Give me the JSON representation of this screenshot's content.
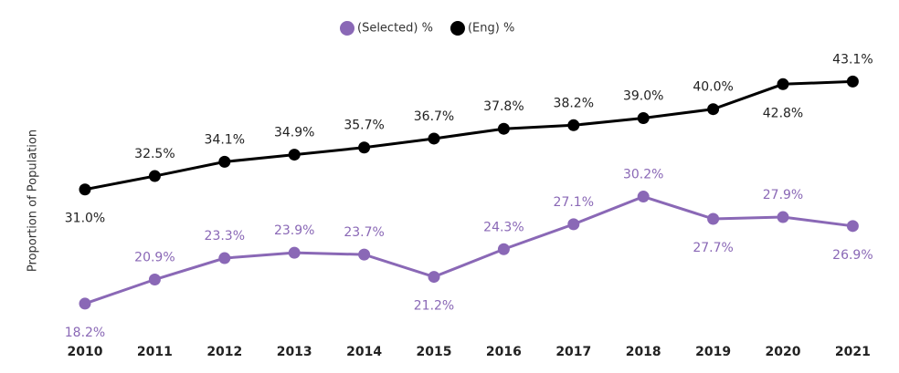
{
  "chart_data": {
    "type": "line",
    "y_label": "Proportion of Population",
    "categories": [
      "2010",
      "2011",
      "2012",
      "2013",
      "2014",
      "2015",
      "2016",
      "2017",
      "2018",
      "2019",
      "2020",
      "2021"
    ],
    "ylim": [
      14,
      46
    ],
    "legend": "top",
    "series": [
      {
        "name": "(Selected) %",
        "color": "#8a68b6",
        "values": [
          18.2,
          20.9,
          23.3,
          23.9,
          23.7,
          21.2,
          24.3,
          27.1,
          30.2,
          27.7,
          27.9,
          26.9
        ],
        "value_labels": [
          "18.2%",
          "20.9%",
          "23.3%",
          "23.9%",
          "23.7%",
          "21.2%",
          "24.3%",
          "27.1%",
          "30.2%",
          "27.7%",
          "27.9%",
          "26.9%"
        ]
      },
      {
        "name": "(Eng) %",
        "color": "#000000",
        "values": [
          31.0,
          32.5,
          34.1,
          34.9,
          35.7,
          36.7,
          37.8,
          38.2,
          39.0,
          40.0,
          42.8,
          43.1
        ],
        "value_labels": [
          "31.0%",
          "32.5%",
          "34.1%",
          "34.9%",
          "35.7%",
          "36.7%",
          "37.8%",
          "38.2%",
          "39.0%",
          "40.0%",
          "42.8%",
          "43.1%"
        ]
      }
    ]
  }
}
